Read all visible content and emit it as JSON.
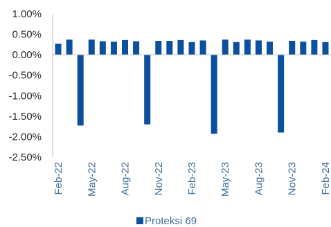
{
  "chart_data": {
    "type": "bar",
    "categories": [
      "Feb-22",
      "Mar-22",
      "Apr-22",
      "May-22",
      "Jun-22",
      "Jul-22",
      "Aug-22",
      "Sep-22",
      "Oct-22",
      "Nov-22",
      "Dec-22",
      "Jan-23",
      "Feb-23",
      "Mar-23",
      "Apr-23",
      "May-23",
      "Jun-23",
      "Jul-23",
      "Aug-23",
      "Sep-23",
      "Oct-23",
      "Nov-23",
      "Dec-23",
      "Jan-24",
      "Feb-24"
    ],
    "x_tick_labels": [
      "Feb-22",
      "May-22",
      "Aug-22",
      "Nov-22",
      "Feb-23",
      "May-23",
      "Aug-23",
      "Nov-23",
      "Feb-24"
    ],
    "series": [
      {
        "name": "Proteksi 69",
        "values": [
          0.27,
          0.37,
          -1.73,
          0.37,
          0.33,
          0.32,
          0.36,
          0.33,
          -1.7,
          0.34,
          0.34,
          0.36,
          0.31,
          0.35,
          -1.93,
          0.37,
          0.31,
          0.37,
          0.35,
          0.32,
          -1.9,
          0.34,
          0.32,
          0.36,
          0.31
        ]
      }
    ],
    "y_tick_labels": [
      "1.00%",
      "0.50%",
      "0.00%",
      "-0.50%",
      "-1.00%",
      "-1.50%",
      "-2.00%",
      "-2.50%"
    ],
    "ylim": [
      -2.5,
      1.0
    ],
    "grid": false,
    "legend": "bottom",
    "colors": {
      "bar": "#0b4f9f",
      "axis": "#bfbfbf"
    },
    "title": "",
    "xlabel": "",
    "ylabel": ""
  }
}
